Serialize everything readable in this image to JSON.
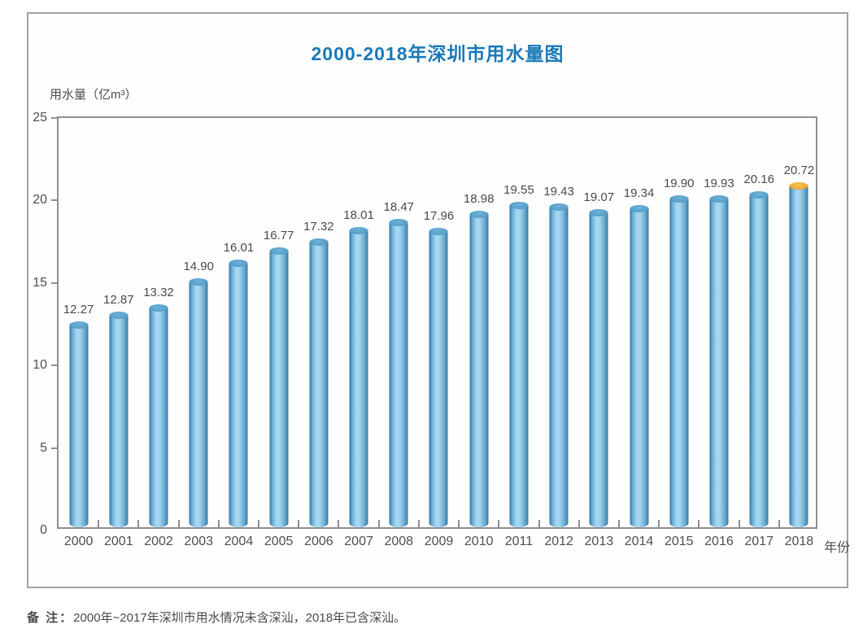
{
  "chart_data": {
    "type": "bar",
    "title": "2000-2018年深圳市用水量图",
    "y_axis_title": "用水量（亿m³）",
    "x_axis_title": "年份",
    "categories": [
      "2000",
      "2001",
      "2002",
      "2003",
      "2004",
      "2005",
      "2006",
      "2007",
      "2008",
      "2009",
      "2010",
      "2011",
      "2012",
      "2013",
      "2014",
      "2015",
      "2016",
      "2017",
      "2018"
    ],
    "values": [
      12.27,
      12.87,
      13.32,
      14.9,
      16.01,
      16.77,
      17.32,
      18.01,
      18.47,
      17.96,
      18.98,
      19.55,
      19.43,
      19.07,
      19.34,
      19.9,
      19.93,
      20.16,
      20.72
    ],
    "ylim": [
      0,
      25
    ],
    "yticks": [
      0,
      5,
      10,
      15,
      20,
      25
    ],
    "highlight_index": 18,
    "bar_style": "cylinder",
    "grid": false,
    "legend": false,
    "colors": {
      "title": "#1a79b8",
      "bar_edge": "#2e74a7",
      "bar_center": "#aadaf2",
      "bar_top": "#579fcb",
      "highlight_cap": "#f0a832",
      "axis": "#8f8f8f",
      "text": "#4a4a4a"
    }
  },
  "note": {
    "label": "备 注：",
    "text": "2000年~2017年深圳市用水情况未含深汕，2018年已含深汕。"
  }
}
